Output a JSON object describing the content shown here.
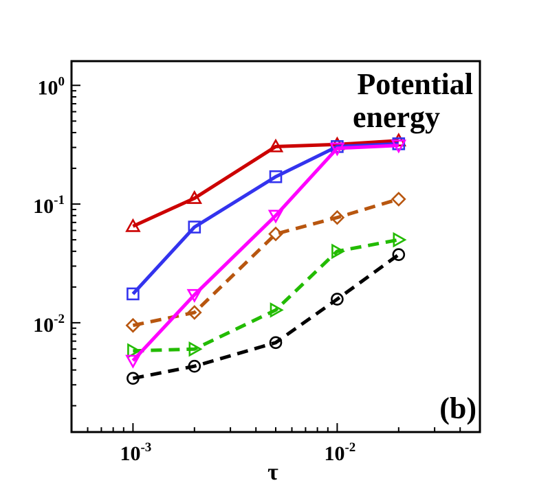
{
  "chart_data": {
    "type": "line",
    "scale": {
      "x": "log",
      "y": "log"
    },
    "xlim": [
      0.0005,
      0.05
    ],
    "ylim": [
      0.0012,
      1.6
    ],
    "xlabel": "τ",
    "ylabel": "",
    "x_ticks": [
      {
        "value": 0.001,
        "base": "10",
        "exp": "-3"
      },
      {
        "value": 0.01,
        "base": "10",
        "exp": "-2"
      }
    ],
    "y_ticks": [
      {
        "value": 0.01,
        "base": "10",
        "exp": "-2"
      },
      {
        "value": 0.1,
        "base": "10",
        "exp": "-1"
      },
      {
        "value": 1,
        "base": "10",
        "exp": "0"
      }
    ],
    "annotations": {
      "title_line1": "Potential",
      "title_line2": "energy",
      "panel": "(b)"
    },
    "x": [
      0.001,
      0.002,
      0.005,
      0.01,
      0.02
    ],
    "series": [
      {
        "name": "series-red-triangle-up",
        "color": "#cc0000",
        "dash": "solid",
        "marker": "triangle-up",
        "values": [
          0.065,
          0.112,
          0.305,
          0.318,
          0.342
        ]
      },
      {
        "name": "series-blue-square",
        "color": "#3333ee",
        "dash": "solid",
        "marker": "square",
        "values": [
          0.0175,
          0.064,
          0.17,
          0.305,
          0.322
        ]
      },
      {
        "name": "series-magenta-triangle-down",
        "color": "#ff00ff",
        "dash": "solid",
        "marker": "triangle-down",
        "values": [
          0.0048,
          0.0172,
          0.08,
          0.295,
          0.312
        ]
      },
      {
        "name": "series-brown-diamond",
        "color": "#b8560f",
        "dash": "dashed",
        "marker": "diamond",
        "values": [
          0.0095,
          0.0122,
          0.056,
          0.077,
          0.11
        ]
      },
      {
        "name": "series-green-triangle-right",
        "color": "#22bb00",
        "dash": "dashed",
        "marker": "triangle-right",
        "values": [
          0.0058,
          0.006,
          0.0128,
          0.04,
          0.05
        ]
      },
      {
        "name": "series-black-circle",
        "color": "#000000",
        "dash": "dashed",
        "marker": "circle",
        "values": [
          0.0034,
          0.0043,
          0.0068,
          0.0158,
          0.0375
        ]
      }
    ]
  }
}
